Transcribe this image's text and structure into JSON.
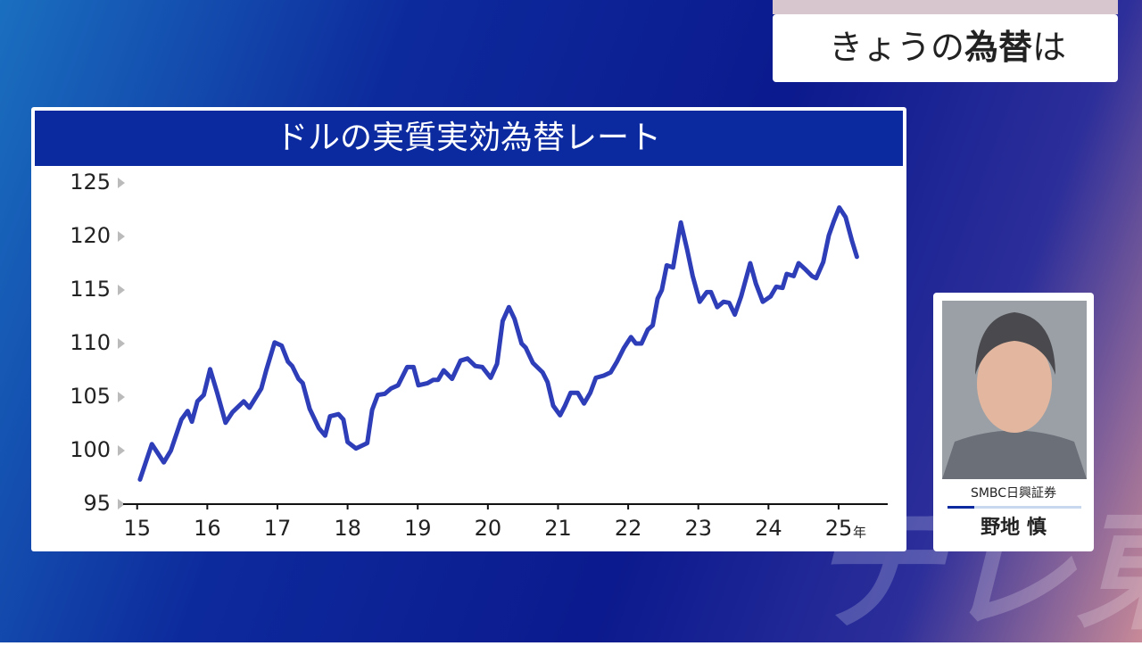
{
  "banner": {
    "part_1": "きょうの",
    "emphasis": "為替",
    "part_2": "は"
  },
  "guest": {
    "company": "SMBC日興証券",
    "name": "野地 慎"
  },
  "watermark": "テレ東",
  "chart_data": {
    "type": "line",
    "title": "ドルの実質実効為替レート",
    "color": "#2e3db8",
    "x": [
      15.04,
      15.21,
      15.38,
      15.48,
      15.63,
      15.72,
      15.78,
      15.86,
      15.95,
      16.04,
      16.14,
      16.26,
      16.36,
      16.52,
      16.6,
      16.77,
      16.84,
      16.96,
      17.06,
      17.15,
      17.21,
      17.3,
      17.36,
      17.46,
      17.59,
      17.68,
      17.75,
      17.87,
      17.94,
      18,
      18.12,
      18.28,
      18.35,
      18.43,
      18.53,
      18.62,
      18.72,
      18.85,
      18.94,
      19.01,
      19.14,
      19.22,
      19.29,
      19.37,
      19.49,
      19.61,
      19.71,
      19.82,
      19.92,
      20.04,
      20.13,
      20.21,
      20.3,
      20.38,
      20.48,
      20.54,
      20.64,
      20.78,
      20.85,
      20.93,
      21.03,
      21.1,
      21.18,
      21.28,
      21.37,
      21.46,
      21.54,
      21.65,
      21.75,
      21.84,
      21.94,
      22.04,
      22.11,
      22.19,
      22.28,
      22.35,
      22.42,
      22.48,
      22.55,
      22.64,
      22.75,
      22.84,
      22.92,
      23.02,
      23.12,
      23.18,
      23.27,
      23.36,
      23.44,
      23.52,
      23.61,
      23.74,
      23.82,
      23.92,
      24.03,
      24.11,
      24.2,
      24.26,
      24.36,
      24.43,
      24.53,
      24.62,
      24.68,
      24.78,
      24.86,
      24.93,
      25.01,
      25.1,
      25.19,
      25.26
    ],
    "values": [
      97.3,
      100.6,
      98.9,
      100,
      102.9,
      103.7,
      102.7,
      104.6,
      105.2,
      107.6,
      105.4,
      102.6,
      103.6,
      104.6,
      104,
      105.8,
      107.5,
      110.1,
      109.8,
      108.3,
      107.9,
      106.7,
      106.3,
      103.9,
      102.1,
      101.4,
      103.2,
      103.4,
      102.9,
      100.8,
      100.2,
      100.7,
      103.8,
      105.2,
      105.3,
      105.8,
      106.1,
      107.8,
      107.8,
      106.1,
      106.3,
      106.6,
      106.6,
      107.5,
      106.7,
      108.4,
      108.6,
      107.9,
      107.8,
      106.8,
      108.1,
      112.1,
      113.4,
      112.3,
      110,
      109.6,
      108.2,
      107.3,
      106.4,
      104.2,
      103.3,
      104.2,
      105.4,
      105.4,
      104.4,
      105.4,
      106.8,
      107,
      107.3,
      108.3,
      109.6,
      110.6,
      110,
      110,
      111.3,
      111.7,
      114.2,
      115,
      117.3,
      117.1,
      121.3,
      118.8,
      116.3,
      113.9,
      114.8,
      114.8,
      113.4,
      113.9,
      113.8,
      112.7,
      114.4,
      117.5,
      115.6,
      113.9,
      114.4,
      115.3,
      115.2,
      116.5,
      116.3,
      117.5,
      116.9,
      116.3,
      116.1,
      117.6,
      120.1,
      121.4,
      122.7,
      121.8,
      119.6,
      118.1
    ],
    "xlim": [
      14.8,
      25.7
    ],
    "xticks": [
      15,
      16,
      17,
      18,
      19,
      20,
      21,
      22,
      23,
      24,
      25
    ],
    "x_unit": "年",
    "ylim": [
      95,
      125
    ],
    "yticks": [
      95,
      100,
      105,
      110,
      115,
      120,
      125
    ]
  }
}
